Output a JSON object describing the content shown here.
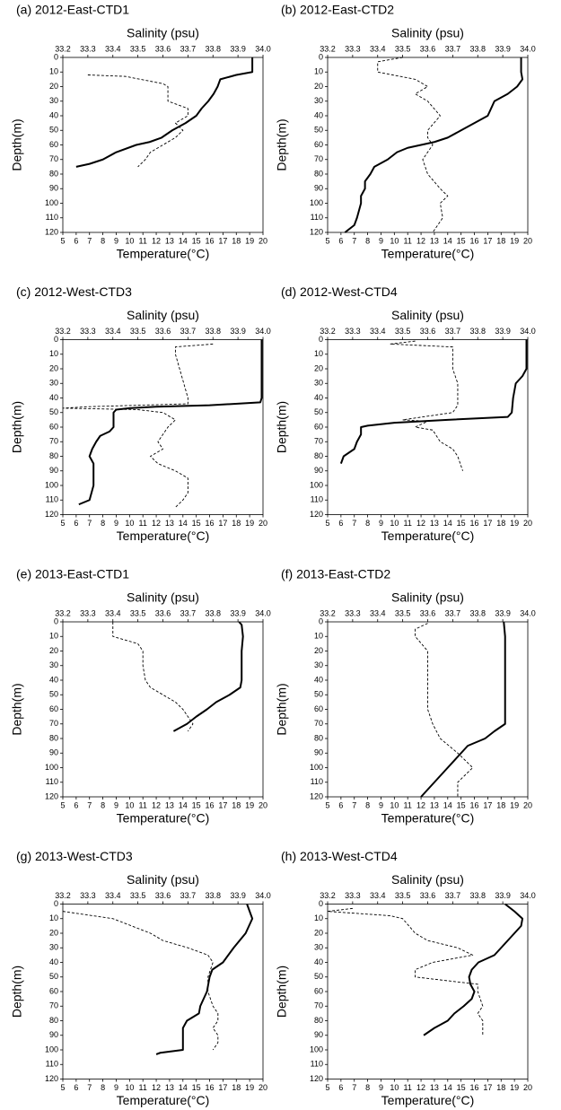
{
  "chart_data": [
    {
      "type": "line",
      "title": "(a) 2012-East-CTD1",
      "x_label": "Temperature(°C)",
      "x2_label": "Salinity (psu)",
      "y_label": "Depth(m)",
      "xlim": [
        5,
        20
      ],
      "xticks": [
        5,
        6,
        7,
        8,
        9,
        10,
        11,
        12,
        13,
        14,
        15,
        16,
        17,
        18,
        19,
        20
      ],
      "x2lim": [
        33.2,
        34
      ],
      "x2ticks": [
        33.2,
        33.3,
        33.4,
        33.5,
        33.6,
        33.7,
        33.8,
        33.9,
        {
          "value": 34,
          "label": "34.0"
        }
      ],
      "ylim": [
        0,
        120
      ],
      "y_inverted": true,
      "yticks": [
        0,
        10,
        20,
        30,
        40,
        50,
        60,
        70,
        80,
        90,
        100,
        110,
        120
      ],
      "series": [
        {
          "color": "#000000",
          "axis": "x",
          "style": "solid",
          "depth": [
            0,
            10,
            12,
            15,
            20,
            25,
            30,
            35,
            40,
            45,
            50,
            55,
            58,
            60,
            65,
            70,
            73,
            75
          ],
          "values": [
            19.2,
            19.2,
            18.0,
            16.8,
            16.6,
            16.3,
            15.9,
            15.4,
            15.0,
            14.2,
            13.2,
            12.4,
            11.5,
            10.5,
            9.0,
            8.0,
            7.0,
            6.0
          ]
        },
        {
          "color": "#000000",
          "axis": "x2",
          "style": "dashed",
          "depth": [
            12,
            13,
            18,
            20,
            30,
            35,
            40,
            45,
            50,
            55,
            60,
            65,
            70,
            75
          ],
          "values": [
            33.3,
            33.45,
            33.6,
            33.62,
            33.62,
            33.7,
            33.7,
            33.65,
            33.68,
            33.65,
            33.6,
            33.55,
            33.53,
            33.5
          ]
        }
      ]
    },
    {
      "type": "line",
      "title": "(b) 2012-East-CTD2",
      "x_label": "Temperature(°C)",
      "x2_label": "Salinity (psu)",
      "y_label": "Depth(m)",
      "xlim": [
        5,
        20
      ],
      "xticks": [
        5,
        6,
        7,
        8,
        9,
        10,
        11,
        12,
        13,
        14,
        15,
        16,
        17,
        18,
        19,
        20
      ],
      "x2lim": [
        33.2,
        34
      ],
      "x2ticks": [
        33.2,
        33.3,
        33.4,
        33.5,
        33.6,
        33.7,
        33.8,
        33.9,
        {
          "value": 34,
          "label": "34.0"
        }
      ],
      "ylim": [
        0,
        120
      ],
      "y_inverted": true,
      "yticks": [
        0,
        10,
        20,
        30,
        40,
        50,
        60,
        70,
        80,
        90,
        100,
        110,
        120
      ],
      "series": [
        {
          "color": "#000000",
          "axis": "x",
          "style": "solid",
          "depth": [
            0,
            10,
            15,
            20,
            25,
            30,
            40,
            45,
            50,
            55,
            58,
            62,
            65,
            70,
            75,
            80,
            85,
            90,
            95,
            100,
            110,
            115,
            120
          ],
          "values": [
            19.5,
            19.5,
            19.6,
            19.2,
            18.5,
            17.5,
            17.0,
            16.0,
            15.0,
            14.0,
            13.0,
            11.0,
            10.2,
            9.5,
            8.5,
            8.2,
            7.8,
            7.8,
            7.5,
            7.5,
            7.2,
            7.0,
            6.3
          ]
        },
        {
          "color": "#000000",
          "axis": "x2",
          "style": "dashed",
          "depth": [
            0,
            3,
            10,
            15,
            20,
            25,
            30,
            40,
            50,
            55,
            60,
            70,
            80,
            90,
            95,
            100,
            110,
            115,
            120
          ],
          "values": [
            33.5,
            33.4,
            33.4,
            33.55,
            33.6,
            33.55,
            33.6,
            33.65,
            33.6,
            33.6,
            33.62,
            33.58,
            33.6,
            33.65,
            33.68,
            33.65,
            33.66,
            33.64,
            33.62
          ]
        }
      ]
    },
    {
      "type": "line",
      "title": "(c) 2012-West-CTD3",
      "x_label": "Temperature(°C)",
      "x2_label": "Salinity (psu)",
      "y_label": "Depth(m)",
      "xlim": [
        5,
        20
      ],
      "xticks": [
        5,
        6,
        7,
        8,
        9,
        10,
        11,
        12,
        13,
        14,
        15,
        16,
        17,
        18,
        19,
        20
      ],
      "x2lim": [
        33.2,
        34
      ],
      "x2ticks": [
        33.2,
        33.3,
        33.4,
        33.5,
        33.6,
        33.7,
        33.8,
        33.9,
        {
          "value": 34,
          "label": "34.0"
        }
      ],
      "ylim": [
        0,
        120
      ],
      "y_inverted": true,
      "yticks": [
        0,
        10,
        20,
        30,
        40,
        50,
        60,
        70,
        80,
        90,
        100,
        110,
        120
      ],
      "series": [
        {
          "color": "#000000",
          "axis": "x",
          "style": "solid",
          "depth": [
            0,
            40,
            43,
            45,
            46,
            47,
            48,
            50,
            60,
            63,
            66,
            70,
            75,
            80,
            85,
            90,
            100,
            110,
            113
          ],
          "values": [
            19.9,
            19.9,
            19.8,
            16.0,
            12.0,
            10.0,
            9.0,
            8.8,
            8.8,
            8.5,
            7.8,
            7.5,
            7.2,
            7.0,
            7.3,
            7.3,
            7.3,
            7.0,
            6.2
          ]
        },
        {
          "color": "#000000",
          "axis": "x2",
          "style": "dashed",
          "depth": [
            3,
            5,
            10,
            40,
            44,
            46,
            47,
            48,
            50,
            55,
            60,
            65,
            70,
            75,
            80,
            85,
            90,
            95,
            100,
            105,
            110,
            115
          ],
          "values": [
            33.8,
            33.65,
            33.65,
            33.7,
            33.7,
            33.3,
            33.2,
            33.5,
            33.6,
            33.65,
            33.62,
            33.6,
            33.58,
            33.6,
            33.55,
            33.58,
            33.65,
            33.7,
            33.7,
            33.7,
            33.68,
            33.65
          ]
        }
      ]
    },
    {
      "type": "line",
      "title": "(d) 2012-West-CTD4",
      "x_label": "Temperature(°C)",
      "x2_label": "Salinity (psu)",
      "y_label": "Depth(m)",
      "xlim": [
        5,
        20
      ],
      "xticks": [
        5,
        6,
        7,
        8,
        9,
        10,
        11,
        12,
        13,
        14,
        15,
        16,
        17,
        18,
        19,
        20
      ],
      "x2lim": [
        33.2,
        34
      ],
      "x2ticks": [
        33.2,
        33.3,
        33.4,
        33.5,
        33.6,
        33.7,
        33.8,
        33.9,
        {
          "value": 34,
          "label": "34.0"
        }
      ],
      "ylim": [
        0,
        120
      ],
      "y_inverted": true,
      "yticks": [
        0,
        10,
        20,
        30,
        40,
        50,
        60,
        70,
        80,
        90,
        100,
        110,
        120
      ],
      "series": [
        {
          "color": "#000000",
          "axis": "x",
          "style": "solid",
          "depth": [
            0,
            20,
            25,
            30,
            40,
            50,
            53,
            55,
            57,
            59,
            60,
            65,
            70,
            75,
            80,
            85
          ],
          "values": [
            19.9,
            19.9,
            19.6,
            19.1,
            18.9,
            18.8,
            18.5,
            14.0,
            10.0,
            8.0,
            7.5,
            7.5,
            7.2,
            7.0,
            6.2,
            6.0
          ]
        },
        {
          "color": "#000000",
          "axis": "x2",
          "style": "dashed",
          "depth": [
            1,
            3,
            5,
            20,
            30,
            45,
            50,
            55,
            56,
            60,
            62,
            70,
            75,
            80,
            85,
            90
          ],
          "values": [
            33.55,
            33.45,
            33.7,
            33.7,
            33.72,
            33.72,
            33.7,
            33.5,
            33.6,
            33.55,
            33.62,
            33.65,
            33.7,
            33.72,
            33.73,
            33.74
          ]
        }
      ]
    },
    {
      "type": "line",
      "title": "(e) 2013-East-CTD1",
      "x_label": "Temperature(°C)",
      "x2_label": "Salinity (psu)",
      "y_label": "Depth(m)",
      "xlim": [
        5,
        20
      ],
      "xticks": [
        5,
        6,
        7,
        8,
        9,
        10,
        11,
        12,
        13,
        14,
        15,
        16,
        17,
        18,
        19,
        20
      ],
      "x2lim": [
        33.2,
        34
      ],
      "x2ticks": [
        33.2,
        33.3,
        33.4,
        33.5,
        33.6,
        33.7,
        33.8,
        33.9,
        {
          "value": 34,
          "label": "34.0"
        }
      ],
      "ylim": [
        0,
        120
      ],
      "y_inverted": true,
      "yticks": [
        0,
        10,
        20,
        30,
        40,
        50,
        60,
        70,
        80,
        90,
        100,
        110,
        120
      ],
      "series": [
        {
          "color": "#000000",
          "axis": "x",
          "style": "solid",
          "depth": [
            0,
            2,
            10,
            20,
            30,
            40,
            45,
            50,
            55,
            60,
            65,
            70,
            75
          ],
          "values": [
            18.2,
            18.4,
            18.5,
            18.4,
            18.4,
            18.4,
            18.3,
            17.5,
            16.5,
            15.8,
            15.0,
            14.3,
            13.3
          ]
        },
        {
          "color": "#000000",
          "axis": "x2",
          "style": "dashed",
          "depth": [
            0,
            10,
            15,
            20,
            30,
            40,
            45,
            50,
            55,
            60,
            65,
            70,
            75
          ],
          "values": [
            33.4,
            33.4,
            33.5,
            33.52,
            33.52,
            33.53,
            33.55,
            33.6,
            33.65,
            33.68,
            33.7,
            33.72,
            33.7
          ]
        }
      ]
    },
    {
      "type": "line",
      "title": "(f) 2013-East-CTD2",
      "x_label": "Temperature(°C)",
      "x2_label": "Salinity (psu)",
      "y_label": "Depth(m)",
      "xlim": [
        5,
        20
      ],
      "xticks": [
        5,
        6,
        7,
        8,
        9,
        10,
        11,
        12,
        13,
        14,
        15,
        16,
        17,
        18,
        19,
        20
      ],
      "x2lim": [
        33.2,
        34
      ],
      "x2ticks": [
        33.2,
        33.3,
        33.4,
        33.5,
        33.6,
        33.7,
        33.8,
        33.9,
        {
          "value": 34,
          "label": "34.0"
        }
      ],
      "ylim": [
        0,
        120
      ],
      "y_inverted": true,
      "yticks": [
        0,
        10,
        20,
        30,
        40,
        50,
        60,
        70,
        80,
        90,
        100,
        110,
        120
      ],
      "series": [
        {
          "color": "#000000",
          "axis": "x",
          "style": "solid",
          "depth": [
            0,
            10,
            70,
            75,
            80,
            85,
            90,
            100,
            110,
            120
          ],
          "values": [
            18.2,
            18.3,
            18.3,
            17.5,
            16.8,
            15.5,
            15.0,
            14.0,
            13.0,
            12.0
          ]
        },
        {
          "color": "#000000",
          "axis": "x2",
          "style": "dashed",
          "depth": [
            1,
            5,
            10,
            20,
            60,
            70,
            80,
            90,
            95,
            100,
            105,
            110,
            115,
            120
          ],
          "values": [
            33.6,
            33.55,
            33.55,
            33.6,
            33.6,
            33.62,
            33.65,
            33.72,
            33.75,
            33.78,
            33.75,
            33.72,
            33.72,
            33.72
          ]
        }
      ]
    },
    {
      "type": "line",
      "title": "(g) 2013-West-CTD3",
      "x_label": "Temperature(°C)",
      "x2_label": "Salinity (psu)",
      "y_label": "Depth(m)",
      "xlim": [
        5,
        20
      ],
      "xticks": [
        5,
        6,
        7,
        8,
        9,
        10,
        11,
        12,
        13,
        14,
        15,
        16,
        17,
        18,
        19,
        20
      ],
      "x2lim": [
        33.2,
        34
      ],
      "x2ticks": [
        33.2,
        33.3,
        33.4,
        33.5,
        33.6,
        33.7,
        33.8,
        33.9,
        {
          "value": 34,
          "label": "34.0"
        }
      ],
      "ylim": [
        0,
        120
      ],
      "y_inverted": true,
      "yticks": [
        0,
        10,
        20,
        30,
        40,
        50,
        60,
        70,
        80,
        90,
        100,
        110,
        120
      ],
      "series": [
        {
          "color": "#000000",
          "axis": "x",
          "style": "solid",
          "depth": [
            0,
            5,
            10,
            20,
            30,
            40,
            45,
            50,
            60,
            70,
            75,
            80,
            85,
            90,
            100,
            102,
            103
          ],
          "values": [
            18.8,
            19.0,
            19.2,
            18.7,
            17.8,
            17.0,
            16.2,
            16.0,
            15.8,
            15.3,
            15.2,
            14.3,
            14.0,
            14.0,
            14.0,
            12.3,
            12.0
          ]
        },
        {
          "color": "#000000",
          "axis": "x2",
          "style": "dashed",
          "depth": [
            5,
            10,
            20,
            25,
            30,
            35,
            40,
            50,
            60,
            70,
            75,
            80,
            85,
            90,
            95,
            100
          ],
          "values": [
            33.2,
            33.4,
            33.55,
            33.6,
            33.7,
            33.78,
            33.8,
            33.78,
            33.78,
            33.8,
            33.82,
            33.82,
            33.8,
            33.82,
            33.82,
            33.8
          ]
        }
      ]
    },
    {
      "type": "line",
      "title": "(h) 2013-West-CTD4",
      "x_label": "Temperature(°C)",
      "x2_label": "Salinity (psu)",
      "y_label": "Depth(m)",
      "xlim": [
        5,
        20
      ],
      "xticks": [
        5,
        6,
        7,
        8,
        9,
        10,
        11,
        12,
        13,
        14,
        15,
        16,
        17,
        18,
        19,
        20
      ],
      "x2lim": [
        33.2,
        34
      ],
      "x2ticks": [
        33.2,
        33.3,
        33.4,
        33.5,
        33.6,
        33.7,
        33.8,
        33.9,
        {
          "value": 34,
          "label": "34.0"
        }
      ],
      "ylim": [
        0,
        120
      ],
      "y_inverted": true,
      "yticks": [
        0,
        10,
        20,
        30,
        40,
        50,
        60,
        70,
        80,
        90,
        100,
        110,
        120
      ],
      "series": [
        {
          "color": "#000000",
          "axis": "x",
          "style": "solid",
          "depth": [
            0,
            5,
            10,
            15,
            20,
            30,
            35,
            40,
            45,
            50,
            55,
            60,
            65,
            70,
            75,
            80,
            85,
            90
          ],
          "values": [
            18.3,
            19.0,
            19.6,
            19.5,
            19.0,
            18.0,
            17.5,
            16.3,
            15.8,
            15.6,
            15.7,
            16.0,
            15.8,
            15.2,
            14.5,
            14.0,
            13.0,
            12.2
          ]
        },
        {
          "color": "#000000",
          "axis": "x2",
          "style": "dashed",
          "depth": [
            3,
            5,
            8,
            10,
            20,
            25,
            30,
            35,
            40,
            45,
            50,
            52,
            55,
            60,
            70,
            75,
            80,
            90
          ],
          "values": [
            33.3,
            33.2,
            33.45,
            33.5,
            33.55,
            33.6,
            33.72,
            33.78,
            33.62,
            33.55,
            33.55,
            33.65,
            33.8,
            33.8,
            33.82,
            33.8,
            33.82,
            33.82
          ]
        }
      ]
    }
  ]
}
